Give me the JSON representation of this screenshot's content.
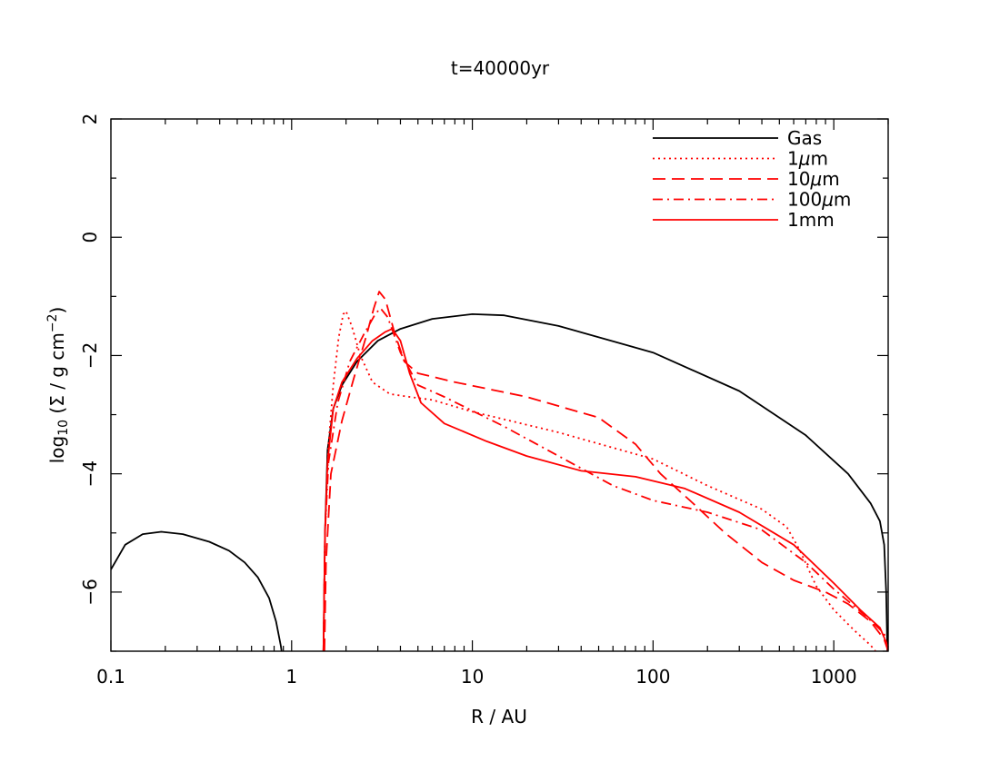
{
  "chart_data": {
    "type": "line",
    "title": "t=40000yr",
    "xlabel": "R / AU",
    "ylabel": {
      "prefix": "log",
      "sub": "10",
      "mid": " (Σ / g cm",
      "sup": "−2",
      "suffix": ")"
    },
    "xscale": "log",
    "xlim": [
      0.1,
      2000
    ],
    "ylim": [
      -7,
      2
    ],
    "xticks": [
      {
        "v": 0.1,
        "label": "0.1"
      },
      {
        "v": 1,
        "label": "1"
      },
      {
        "v": 10,
        "label": "10"
      },
      {
        "v": 100,
        "label": "100"
      },
      {
        "v": 1000,
        "label": "1000"
      }
    ],
    "yticks": [
      {
        "v": 2,
        "label": "2"
      },
      {
        "v": 0,
        "label": "0"
      },
      {
        "v": -2,
        "label": "−2"
      },
      {
        "v": -4,
        "label": "−4"
      },
      {
        "v": -6,
        "label": "−6"
      }
    ],
    "legend_position": "top-right",
    "series": [
      {
        "name": "Gas",
        "name_parts": [
          "Gas"
        ],
        "color": "#000000",
        "style": "solid",
        "segments": [
          [
            [
              0.1,
              -5.62
            ],
            [
              0.12,
              -5.2
            ],
            [
              0.15,
              -5.02
            ],
            [
              0.19,
              -4.98
            ],
            [
              0.25,
              -5.02
            ],
            [
              0.35,
              -5.15
            ],
            [
              0.45,
              -5.3
            ],
            [
              0.55,
              -5.5
            ],
            [
              0.65,
              -5.75
            ],
            [
              0.75,
              -6.1
            ],
            [
              0.82,
              -6.5
            ],
            [
              0.87,
              -6.9
            ],
            [
              0.88,
              -7
            ]
          ],
          [
            [
              1.5,
              -7
            ],
            [
              1.53,
              -5
            ],
            [
              1.58,
              -3.6
            ],
            [
              1.7,
              -2.9
            ],
            [
              1.9,
              -2.5
            ],
            [
              2.3,
              -2.1
            ],
            [
              3,
              -1.75
            ],
            [
              4,
              -1.55
            ],
            [
              6,
              -1.38
            ],
            [
              10,
              -1.3
            ],
            [
              15,
              -1.32
            ],
            [
              30,
              -1.5
            ],
            [
              100,
              -1.95
            ],
            [
              300,
              -2.6
            ],
            [
              700,
              -3.35
            ],
            [
              1200,
              -4
            ],
            [
              1600,
              -4.5
            ],
            [
              1800,
              -4.8
            ],
            [
              1900,
              -5.2
            ],
            [
              1950,
              -6
            ],
            [
              1980,
              -7
            ]
          ]
        ]
      },
      {
        "name": "1μm",
        "name_parts": [
          "1",
          "μ",
          "m"
        ],
        "color": "#ff0000",
        "style": "dotted",
        "segments": [
          [
            [
              1.5,
              -7
            ],
            [
              1.53,
              -5
            ],
            [
              1.6,
              -3.5
            ],
            [
              1.7,
              -2.5
            ],
            [
              1.82,
              -1.7
            ],
            [
              1.93,
              -1.3
            ],
            [
              2,
              -1.25
            ],
            [
              2.15,
              -1.5
            ],
            [
              2.4,
              -2
            ],
            [
              2.8,
              -2.45
            ],
            [
              3.5,
              -2.65
            ],
            [
              4.5,
              -2.7
            ],
            [
              6,
              -2.75
            ],
            [
              10,
              -2.95
            ],
            [
              30,
              -3.3
            ],
            [
              100,
              -3.75
            ],
            [
              200,
              -4.2
            ],
            [
              400,
              -4.6
            ],
            [
              550,
              -4.9
            ],
            [
              650,
              -5.3
            ],
            [
              800,
              -5.9
            ],
            [
              1000,
              -6.3
            ],
            [
              1300,
              -6.65
            ],
            [
              1600,
              -6.9
            ],
            [
              1700,
              -7
            ]
          ]
        ]
      },
      {
        "name": "10μm",
        "name_parts": [
          "10",
          "μ",
          "m"
        ],
        "color": "#ff0000",
        "style": "dashed",
        "segments": [
          [
            [
              1.52,
              -7
            ],
            [
              1.55,
              -5.5
            ],
            [
              1.65,
              -4
            ],
            [
              1.9,
              -3.1
            ],
            [
              2.2,
              -2.4
            ],
            [
              2.6,
              -1.65
            ],
            [
              2.85,
              -1.2
            ],
            [
              3.05,
              -0.92
            ],
            [
              3.3,
              -1.05
            ],
            [
              3.7,
              -1.6
            ],
            [
              4.2,
              -2.1
            ],
            [
              5,
              -2.3
            ],
            [
              8,
              -2.45
            ],
            [
              20,
              -2.7
            ],
            [
              50,
              -3.05
            ],
            [
              80,
              -3.5
            ],
            [
              110,
              -4
            ],
            [
              160,
              -4.45
            ],
            [
              250,
              -5
            ],
            [
              400,
              -5.5
            ],
            [
              600,
              -5.8
            ],
            [
              900,
              -6
            ],
            [
              1200,
              -6.2
            ],
            [
              1600,
              -6.5
            ],
            [
              1900,
              -6.8
            ],
            [
              2000,
              -7
            ]
          ]
        ]
      },
      {
        "name": "100μm",
        "name_parts": [
          "100",
          "μ",
          "m"
        ],
        "color": "#ff0000",
        "style": "dashdot",
        "segments": [
          [
            [
              1.5,
              -7
            ],
            [
              1.53,
              -5
            ],
            [
              1.6,
              -3.8
            ],
            [
              1.8,
              -2.8
            ],
            [
              2.1,
              -2.1
            ],
            [
              2.5,
              -1.65
            ],
            [
              2.9,
              -1.3
            ],
            [
              3.1,
              -1.2
            ],
            [
              3.4,
              -1.35
            ],
            [
              4,
              -1.95
            ],
            [
              5,
              -2.5
            ],
            [
              7,
              -2.7
            ],
            [
              15,
              -3.2
            ],
            [
              30,
              -3.7
            ],
            [
              60,
              -4.2
            ],
            [
              100,
              -4.45
            ],
            [
              200,
              -4.65
            ],
            [
              400,
              -4.95
            ],
            [
              700,
              -5.5
            ],
            [
              1000,
              -5.95
            ],
            [
              1500,
              -6.4
            ],
            [
              1900,
              -6.7
            ],
            [
              2000,
              -7
            ]
          ]
        ]
      },
      {
        "name": "1mm",
        "name_parts": [
          "1mm"
        ],
        "color": "#ff0000",
        "style": "solid",
        "segments": [
          [
            [
              1.5,
              -7
            ],
            [
              1.53,
              -5
            ],
            [
              1.58,
              -3.8
            ],
            [
              1.7,
              -2.9
            ],
            [
              1.9,
              -2.45
            ],
            [
              2.3,
              -2.05
            ],
            [
              2.8,
              -1.75
            ],
            [
              3.3,
              -1.6
            ],
            [
              3.6,
              -1.55
            ],
            [
              4,
              -1.75
            ],
            [
              4.5,
              -2.3
            ],
            [
              5.2,
              -2.8
            ],
            [
              7,
              -3.15
            ],
            [
              12,
              -3.45
            ],
            [
              20,
              -3.7
            ],
            [
              40,
              -3.95
            ],
            [
              80,
              -4.05
            ],
            [
              150,
              -4.25
            ],
            [
              300,
              -4.65
            ],
            [
              600,
              -5.2
            ],
            [
              1000,
              -5.85
            ],
            [
              1400,
              -6.3
            ],
            [
              1800,
              -6.6
            ],
            [
              1950,
              -6.85
            ],
            [
              2000,
              -7
            ]
          ]
        ]
      }
    ]
  }
}
